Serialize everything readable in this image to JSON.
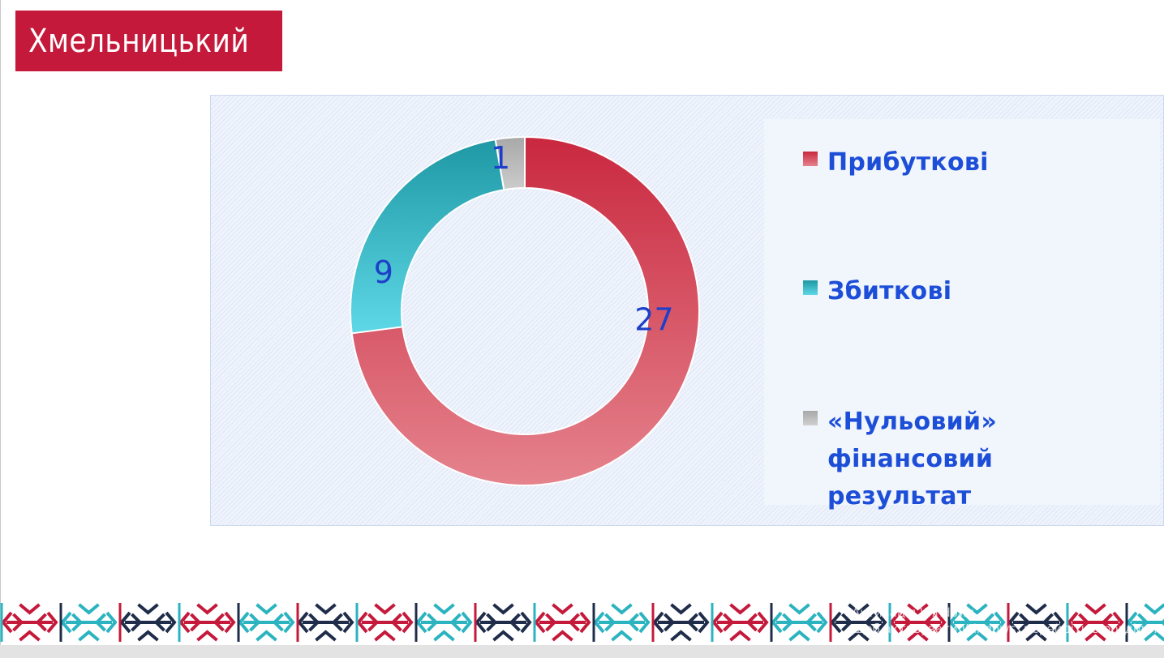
{
  "header": {
    "logo_text": "Хмельницький"
  },
  "colors": {
    "brand_red": "#c4193a",
    "profit": "#d9455f",
    "loss": "#2bb3c0",
    "zero": "#b5b5b5",
    "label": "#1d3fc9"
  },
  "chart_data": {
    "type": "pie",
    "donut": true,
    "categories": [
      "Прибуткові",
      "Збиткові",
      "«Нульовий» фінансовий результат"
    ],
    "values": [
      27,
      9,
      1
    ],
    "data_labels": [
      "27",
      "9",
      "1"
    ],
    "legend_position": "right"
  },
  "legend": {
    "items": [
      {
        "label": "Прибуткові",
        "color": "#d9455f"
      },
      {
        "label": "Збиткові",
        "color": "#2bb3c0"
      },
      {
        "label_line1": "«Нульовий» фінансовий",
        "label_line2": "результат",
        "color": "#b5b5b5"
      }
    ]
  },
  "watermark": {
    "line1": "Активація Windows",
    "line2": "Щоб активувати Windows, перейдіть в розділ \"Пара"
  }
}
